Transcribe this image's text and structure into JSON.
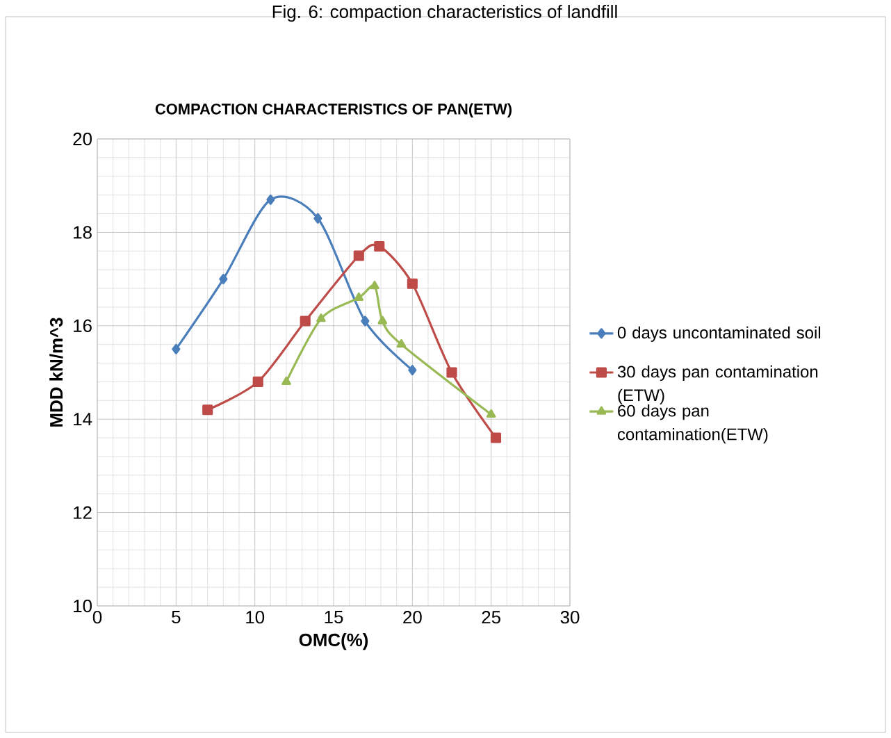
{
  "chart_data": {
    "type": "line",
    "title": "COMPACTION CHARACTERISTICS OF PAN(ETW)",
    "xlabel": "OMC(%)",
    "ylabel": "MDD kN/m^3",
    "annotations": [
      "Fig. 6: compaction characteristics of landfill"
    ],
    "xlim": [
      0,
      30
    ],
    "xticks": [
      0,
      5,
      10,
      15,
      20,
      25,
      30
    ],
    "ylim": [
      10,
      20
    ],
    "yticks": [
      10,
      12,
      14,
      16,
      18,
      20
    ],
    "grid": true,
    "legend": "right",
    "series": [
      {
        "name": "0 days uncontaminated soil",
        "color": "#4a7ebb",
        "marker": "diamond",
        "x": [
          5,
          8,
          11,
          14,
          17,
          20
        ],
        "values": [
          15.5,
          17.0,
          18.7,
          18.3,
          16.1,
          15.05
        ]
      },
      {
        "name": "30 days pan contamination (ETW)",
        "color": "#be4b48",
        "marker": "square",
        "x": [
          7,
          10.2,
          13.2,
          16.6,
          17.9,
          20,
          22.5,
          25.3
        ],
        "values": [
          14.2,
          14.8,
          16.1,
          17.5,
          17.7,
          16.9,
          15.0,
          13.6
        ]
      },
      {
        "name": "60 days pan contamination(ETW)",
        "color": "#98b954",
        "marker": "triangle",
        "x": [
          12,
          14.2,
          16.6,
          17.6,
          18.1,
          19.3,
          25
        ],
        "values": [
          14.8,
          16.15,
          16.6,
          16.85,
          16.1,
          15.6,
          14.1
        ]
      }
    ]
  }
}
